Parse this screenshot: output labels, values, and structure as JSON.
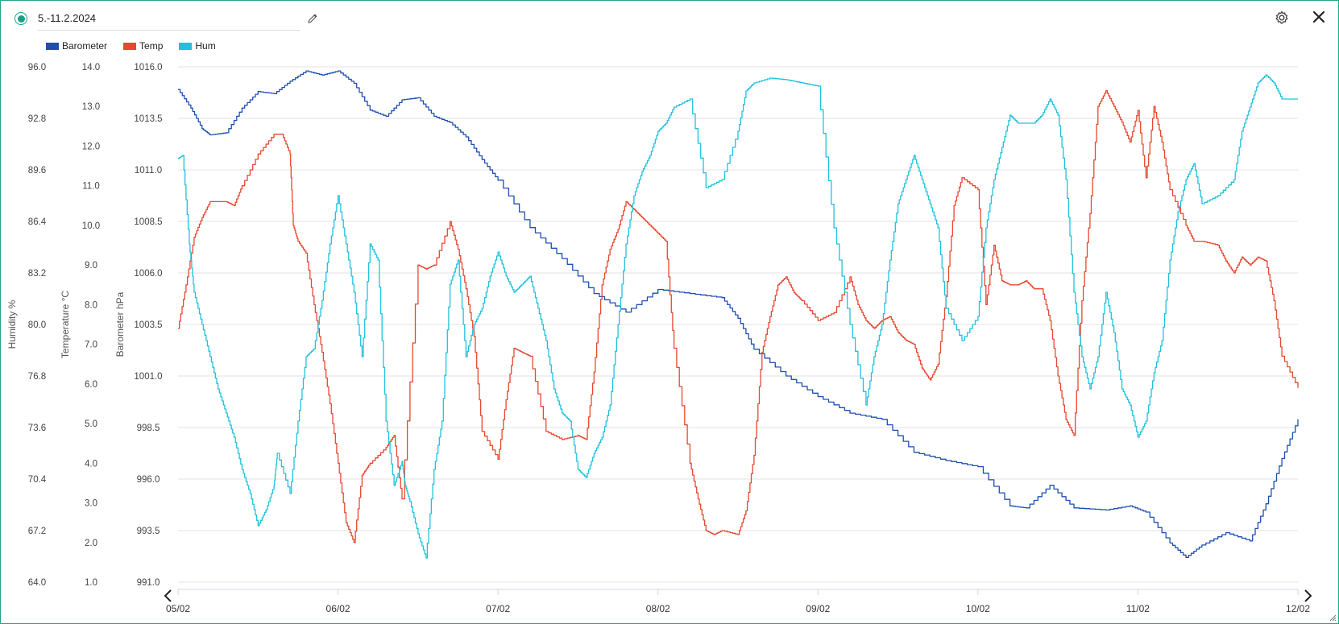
{
  "header": {
    "title": "5.-11.2.2024",
    "status_icon": "status-dot-icon",
    "edit_icon": "pencil-icon",
    "settings_icon": "gear-icon",
    "close_icon": "close-icon"
  },
  "colors": {
    "barometer": "#1e4fb0",
    "temp": "#e8472f",
    "hum": "#1ec2dc",
    "accent": "#1aa089",
    "grid": "#e3e3e3"
  },
  "navigation": {
    "prev_icon": "chevron-left-icon",
    "next_icon": "chevron-right-icon"
  },
  "chart_data": {
    "type": "line",
    "title": "",
    "legend_position": "top-left",
    "grid": true,
    "x": {
      "start": "05/02",
      "end": "12/02",
      "tick_labels": [
        "05/02",
        "06/02",
        "07/02",
        "08/02",
        "09/02",
        "10/02",
        "11/02",
        "12/02"
      ]
    },
    "axes": [
      {
        "id": "hum",
        "label": "Humidity %",
        "range": [
          64.0,
          96.0
        ],
        "ticks": [
          "96.0",
          "92.8",
          "89.6",
          "86.4",
          "83.2",
          "80.0",
          "76.8",
          "73.6",
          "70.4",
          "67.2",
          "64.0"
        ]
      },
      {
        "id": "temp",
        "label": "Temperature °C",
        "range": [
          1.0,
          14.0
        ],
        "ticks": [
          "14.0",
          "13.0",
          "12.0",
          "11.0",
          "10.0",
          "9.0",
          "8.0",
          "7.0",
          "6.0",
          "5.0",
          "4.0",
          "3.0",
          "2.0",
          "1.0"
        ]
      },
      {
        "id": "baro",
        "label": "Barometer hPa",
        "range": [
          991.0,
          1016.0
        ],
        "ticks": [
          "1016.0",
          "1013.5",
          "1011.0",
          "1008.5",
          "1006.0",
          "1003.5",
          "1001.0",
          "998.5",
          "996.0",
          "993.5",
          "991.0"
        ]
      }
    ],
    "series": [
      {
        "name": "Barometer",
        "axis": "baro",
        "x_days": [
          0,
          0.08,
          0.15,
          0.2,
          0.3,
          0.4,
          0.5,
          0.6,
          0.7,
          0.8,
          0.9,
          1.0,
          1.1,
          1.2,
          1.3,
          1.4,
          1.5,
          1.6,
          1.7,
          1.8,
          1.9,
          2.0,
          2.2,
          2.4,
          2.6,
          2.8,
          3.0,
          3.2,
          3.4,
          3.5,
          3.6,
          3.8,
          4.0,
          4.2,
          4.4,
          4.6,
          4.8,
          5.0,
          5.2,
          5.3,
          5.45,
          5.6,
          5.8,
          5.95,
          6.05,
          6.2,
          6.3,
          6.4,
          6.55,
          6.7,
          6.8,
          6.9,
          7.0
        ],
        "values": [
          1014.9,
          1014.0,
          1013.0,
          1012.7,
          1012.8,
          1014.0,
          1014.8,
          1014.7,
          1015.3,
          1015.8,
          1015.6,
          1015.8,
          1015.2,
          1013.9,
          1013.6,
          1014.4,
          1014.5,
          1013.6,
          1013.3,
          1012.6,
          1011.5,
          1010.5,
          1008.2,
          1006.7,
          1005.0,
          1004.1,
          1005.2,
          1005.0,
          1004.8,
          1003.8,
          1002.3,
          1001.0,
          1000.0,
          999.2,
          998.9,
          997.3,
          996.9,
          996.6,
          994.7,
          994.6,
          995.7,
          994.6,
          994.5,
          994.7,
          994.4,
          992.9,
          992.2,
          992.8,
          993.4,
          993.0,
          994.8,
          997.0,
          998.9
        ]
      },
      {
        "name": "Temp",
        "axis": "temp",
        "x_days": [
          0,
          0.05,
          0.1,
          0.15,
          0.2,
          0.3,
          0.35,
          0.4,
          0.5,
          0.6,
          0.65,
          0.7,
          0.72,
          0.75,
          0.8,
          0.85,
          0.9,
          0.95,
          1.0,
          1.05,
          1.1,
          1.15,
          1.2,
          1.3,
          1.35,
          1.4,
          1.5,
          1.55,
          1.6,
          1.7,
          1.75,
          1.8,
          1.85,
          1.9,
          2.0,
          2.05,
          2.1,
          2.15,
          2.2,
          2.3,
          2.4,
          2.5,
          2.55,
          2.6,
          2.65,
          2.7,
          2.75,
          2.8,
          2.85,
          2.9,
          2.95,
          3.0,
          3.05,
          3.1,
          3.2,
          3.25,
          3.3,
          3.35,
          3.4,
          3.5,
          3.55,
          3.6,
          3.65,
          3.7,
          3.75,
          3.8,
          3.85,
          3.9,
          4.0,
          4.1,
          4.2,
          4.25,
          4.3,
          4.35,
          4.4,
          4.45,
          4.5,
          4.55,
          4.6,
          4.65,
          4.7,
          4.75,
          4.8,
          4.85,
          4.9,
          5.0,
          5.05,
          5.1,
          5.15,
          5.2,
          5.25,
          5.3,
          5.35,
          5.4,
          5.45,
          5.5,
          5.55,
          5.6,
          5.65,
          5.7,
          5.75,
          5.8,
          5.85,
          5.9,
          5.95,
          6.0,
          6.05,
          6.1,
          6.15,
          6.2,
          6.3,
          6.35,
          6.4,
          6.5,
          6.55,
          6.6,
          6.65,
          6.7,
          6.75,
          6.8,
          6.85,
          6.9,
          7.0
        ],
        "values": [
          7.4,
          8.5,
          9.7,
          10.2,
          10.6,
          10.6,
          10.5,
          11.0,
          11.8,
          12.3,
          12.3,
          11.8,
          10.0,
          9.6,
          9.3,
          8.0,
          6.8,
          5.5,
          4.0,
          2.5,
          2.0,
          3.7,
          4.0,
          4.4,
          4.7,
          3.1,
          9.0,
          8.9,
          9.0,
          10.1,
          9.4,
          8.4,
          7.2,
          4.8,
          4.1,
          5.6,
          6.9,
          6.8,
          6.7,
          4.8,
          4.6,
          4.7,
          4.6,
          6.3,
          8.5,
          9.4,
          9.9,
          10.6,
          10.4,
          10.2,
          10.0,
          9.8,
          9.6,
          6.9,
          4.0,
          3.1,
          2.3,
          2.2,
          2.3,
          2.2,
          2.8,
          4.2,
          6.8,
          7.7,
          8.5,
          8.7,
          8.3,
          8.1,
          7.6,
          7.8,
          8.7,
          8.0,
          7.6,
          7.4,
          7.6,
          7.7,
          7.3,
          7.1,
          7.0,
          6.4,
          6.1,
          6.5,
          8.2,
          10.5,
          11.2,
          10.9,
          8.0,
          9.5,
          8.6,
          8.5,
          8.5,
          8.6,
          8.4,
          8.4,
          7.6,
          6.2,
          5.1,
          4.7,
          8.1,
          10.3,
          13.0,
          13.4,
          13.0,
          12.6,
          12.1,
          12.9,
          11.2,
          13.0,
          12.1,
          10.9,
          10.0,
          9.6,
          9.6,
          9.5,
          9.1,
          8.8,
          9.2,
          9.0,
          9.2,
          9.1,
          8.1,
          6.7,
          5.9
        ]
      },
      {
        "name": "Hum",
        "axis": "hum",
        "x_days": [
          0,
          0.03,
          0.07,
          0.1,
          0.15,
          0.2,
          0.25,
          0.3,
          0.35,
          0.4,
          0.45,
          0.5,
          0.55,
          0.6,
          0.62,
          0.7,
          0.75,
          0.8,
          0.85,
          0.9,
          0.95,
          1.0,
          1.05,
          1.1,
          1.15,
          1.2,
          1.25,
          1.3,
          1.35,
          1.4,
          1.42,
          1.45,
          1.5,
          1.55,
          1.6,
          1.65,
          1.7,
          1.75,
          1.8,
          1.85,
          1.9,
          1.95,
          2.0,
          2.05,
          2.1,
          2.15,
          2.2,
          2.25,
          2.3,
          2.35,
          2.4,
          2.45,
          2.5,
          2.55,
          2.6,
          2.65,
          2.7,
          2.75,
          2.8,
          2.85,
          2.9,
          2.95,
          3.0,
          3.05,
          3.1,
          3.2,
          3.3,
          3.4,
          3.5,
          3.55,
          3.6,
          3.7,
          3.8,
          3.9,
          4.0,
          4.1,
          4.2,
          4.3,
          4.35,
          4.4,
          4.45,
          4.5,
          4.55,
          4.6,
          4.65,
          4.7,
          4.75,
          4.8,
          4.9,
          5.0,
          5.05,
          5.1,
          5.15,
          5.2,
          5.25,
          5.3,
          5.35,
          5.4,
          5.45,
          5.5,
          5.55,
          5.6,
          5.65,
          5.7,
          5.75,
          5.8,
          5.85,
          5.9,
          5.95,
          6.0,
          6.05,
          6.1,
          6.15,
          6.2,
          6.25,
          6.3,
          6.35,
          6.4,
          6.5,
          6.6,
          6.65,
          6.7,
          6.75,
          6.8,
          6.85,
          6.9,
          7.0
        ],
        "values": [
          90.3,
          90.5,
          85.0,
          82.0,
          80.0,
          78.0,
          76.0,
          74.5,
          73.0,
          71.0,
          69.5,
          67.5,
          68.5,
          70.0,
          72.0,
          69.5,
          74.0,
          78.0,
          78.5,
          81.5,
          85.0,
          88.0,
          85.0,
          82.0,
          78.0,
          85.0,
          84.0,
          74.0,
          70.0,
          71.5,
          70.0,
          69.0,
          67.0,
          65.5,
          71.0,
          74.0,
          82.5,
          84.0,
          78.0,
          80.0,
          81.0,
          83.0,
          84.5,
          83.0,
          82.0,
          82.5,
          83.0,
          81.0,
          79.0,
          76.0,
          74.5,
          74.0,
          71.0,
          70.5,
          72.0,
          73.0,
          75.0,
          80.0,
          85.0,
          88.0,
          89.5,
          90.5,
          92.0,
          92.5,
          93.5,
          94.0,
          88.5,
          89.0,
          92.0,
          94.5,
          95.0,
          95.3,
          95.2,
          95.0,
          94.8,
          86.0,
          80.0,
          75.0,
          78.0,
          80.0,
          84.0,
          87.5,
          89.0,
          90.5,
          89.0,
          87.5,
          86.0,
          81.0,
          79.0,
          80.5,
          86.0,
          89.0,
          91.0,
          93.0,
          92.5,
          92.5,
          92.5,
          93.0,
          94.0,
          93.0,
          89.0,
          82.0,
          78.0,
          76.0,
          78.0,
          82.0,
          79.5,
          76.0,
          75.0,
          73.0,
          74.0,
          77.0,
          79.0,
          84.0,
          87.0,
          89.0,
          90.0,
          87.5,
          88.0,
          89.0,
          92.0,
          93.5,
          95.0,
          95.5,
          95.0,
          94.0,
          94.0
        ]
      }
    ]
  }
}
